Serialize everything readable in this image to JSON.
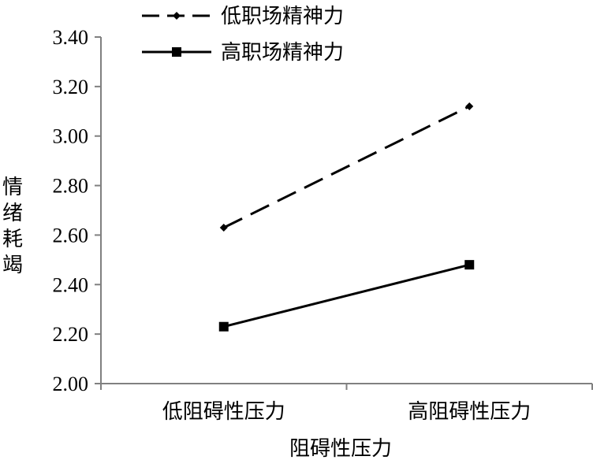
{
  "chart_data": {
    "type": "line",
    "categories": [
      "低阻碍性压力",
      "高阻碍性压力"
    ],
    "xlabel": "阻碍性压力",
    "ylabel": "情绪耗竭",
    "ylim": [
      2.0,
      3.4
    ],
    "yticks": [
      "2.00",
      "2.20",
      "2.40",
      "2.60",
      "2.80",
      "3.00",
      "3.20",
      "3.40"
    ],
    "grid": false,
    "legend_position": "top",
    "series": [
      {
        "name": "低职场精神力",
        "values": [
          2.63,
          3.12
        ],
        "line_style": "dashed",
        "marker": "diamond",
        "color": "#000000"
      },
      {
        "name": "高职场精神力",
        "values": [
          2.23,
          2.48
        ],
        "line_style": "solid",
        "marker": "square",
        "color": "#000000"
      }
    ]
  }
}
